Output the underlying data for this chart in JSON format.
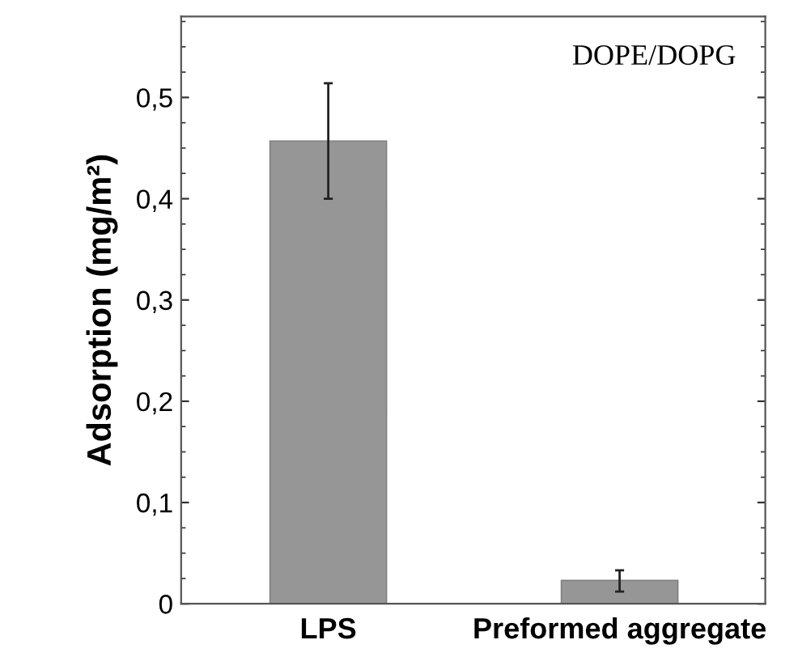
{
  "chart_data": {
    "type": "bar",
    "categories": [
      "LPS",
      "Preformed aggregate"
    ],
    "values": [
      0.457,
      0.023
    ],
    "errors": [
      [
        0.4,
        0.514
      ],
      [
        0.012,
        0.033
      ]
    ],
    "color": "#969696",
    "ylabel": "Adsorption (mg/m²)",
    "annotations": [
      "DOPE/DOPG"
    ],
    "ylim": [
      0,
      0.58
    ],
    "yticks": [
      0,
      {
        "value": 0.1,
        "label": "0,1"
      },
      {
        "value": 0.2,
        "label": "0,2"
      },
      {
        "value": 0.3,
        "label": "0,3"
      },
      {
        "value": 0.4,
        "label": "0,4"
      },
      {
        "value": 0.5,
        "label": "0,5"
      }
    ],
    "grid": false
  }
}
